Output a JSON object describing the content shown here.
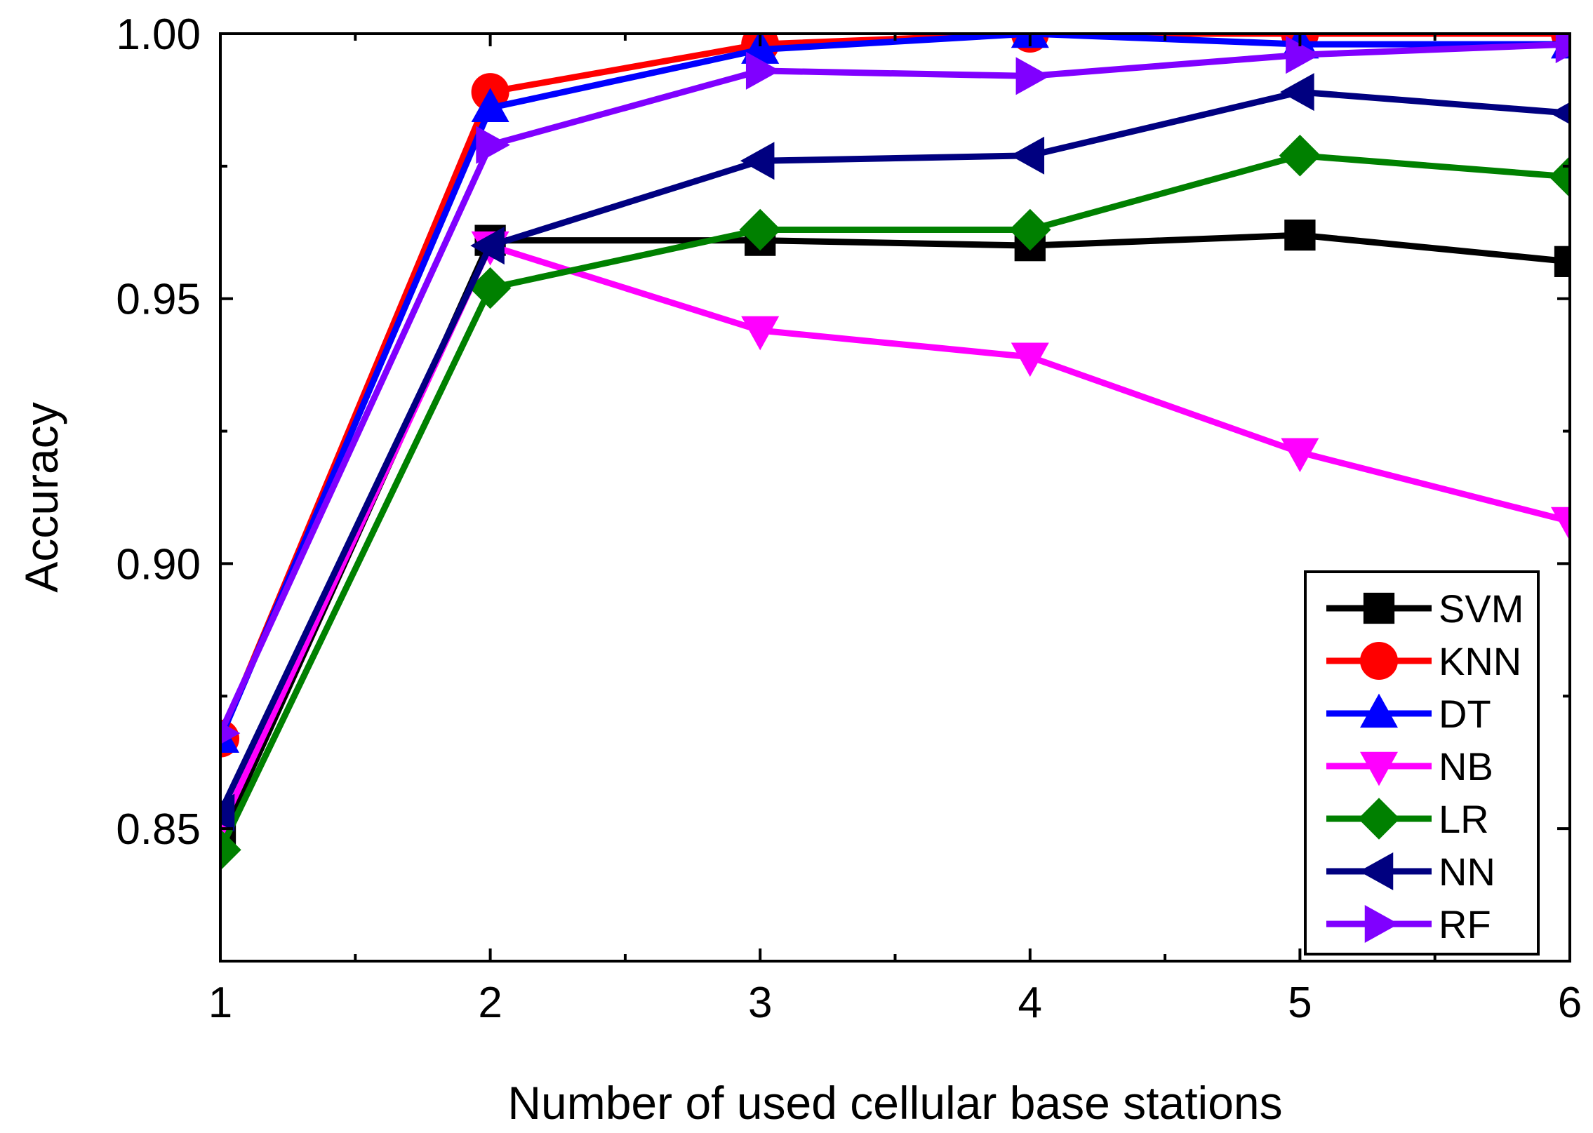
{
  "chart_data": {
    "type": "line",
    "title": "",
    "xlabel": "Number of  used cellular base stations",
    "ylabel": "Accuracy",
    "x": [
      1,
      2,
      3,
      4,
      5,
      6
    ],
    "xlim": [
      1,
      6
    ],
    "ylim": [
      0.825,
      1.0
    ],
    "xticks": [
      "1",
      "2",
      "3",
      "4",
      "5",
      "6"
    ],
    "yticks": [
      "0.85",
      "0.90",
      "0.95",
      "1.00"
    ],
    "grid": false,
    "legend_position": "bottom-right",
    "series": [
      {
        "name": "SVM",
        "color": "#000000",
        "marker": "square",
        "values": [
          0.848,
          0.961,
          0.961,
          0.96,
          0.962,
          0.957
        ]
      },
      {
        "name": "KNN",
        "color": "#ff0000",
        "marker": "circle",
        "values": [
          0.867,
          0.989,
          0.998,
          1.0,
          1.0,
          1.0
        ]
      },
      {
        "name": "DT",
        "color": "#0000ff",
        "marker": "triangle-up",
        "values": [
          0.867,
          0.986,
          0.997,
          1.0,
          0.998,
          0.998
        ]
      },
      {
        "name": "NB",
        "color": "#ff00ff",
        "marker": "triangle-down",
        "values": [
          0.85,
          0.96,
          0.944,
          0.939,
          0.921,
          0.908
        ]
      },
      {
        "name": "LR",
        "color": "#008000",
        "marker": "diamond",
        "values": [
          0.846,
          0.952,
          0.963,
          0.963,
          0.977,
          0.973
        ]
      },
      {
        "name": "NN",
        "color": "#000080",
        "marker": "triangle-left",
        "values": [
          0.853,
          0.96,
          0.976,
          0.977,
          0.989,
          0.985
        ]
      },
      {
        "name": "RF",
        "color": "#8000ff",
        "marker": "triangle-right",
        "values": [
          0.868,
          0.979,
          0.993,
          0.992,
          0.996,
          0.998
        ]
      }
    ]
  }
}
